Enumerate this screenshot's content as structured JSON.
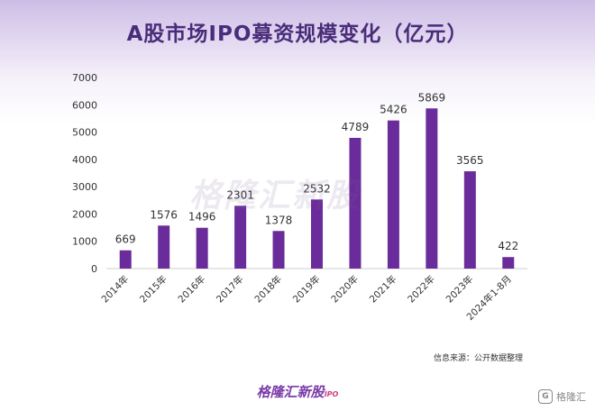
{
  "title": "A股市场IPO募资规模变化（亿元）",
  "watermark": "格隆汇新股",
  "source_text": "信息来源：公开数据整理",
  "brand": {
    "name": "格隆汇新股",
    "tag": "IPO"
  },
  "corner_logo": {
    "icon": "g-logo-icon",
    "text": "格隆汇"
  },
  "chart_data": {
    "type": "bar",
    "categories": [
      "2014年",
      "2015年",
      "2016年",
      "2017年",
      "2018年",
      "2019年",
      "2020年",
      "2021年",
      "2022年",
      "2023年",
      "2024年1-8月"
    ],
    "values": [
      669,
      1576,
      1496,
      2301,
      1378,
      2532,
      4789,
      5426,
      5869,
      3565,
      422
    ],
    "ylim": [
      0,
      7000
    ],
    "yticks": [
      0,
      1000,
      2000,
      3000,
      4000,
      5000,
      6000,
      7000
    ],
    "bar_color": "#6a2c9a",
    "grid": false
  }
}
